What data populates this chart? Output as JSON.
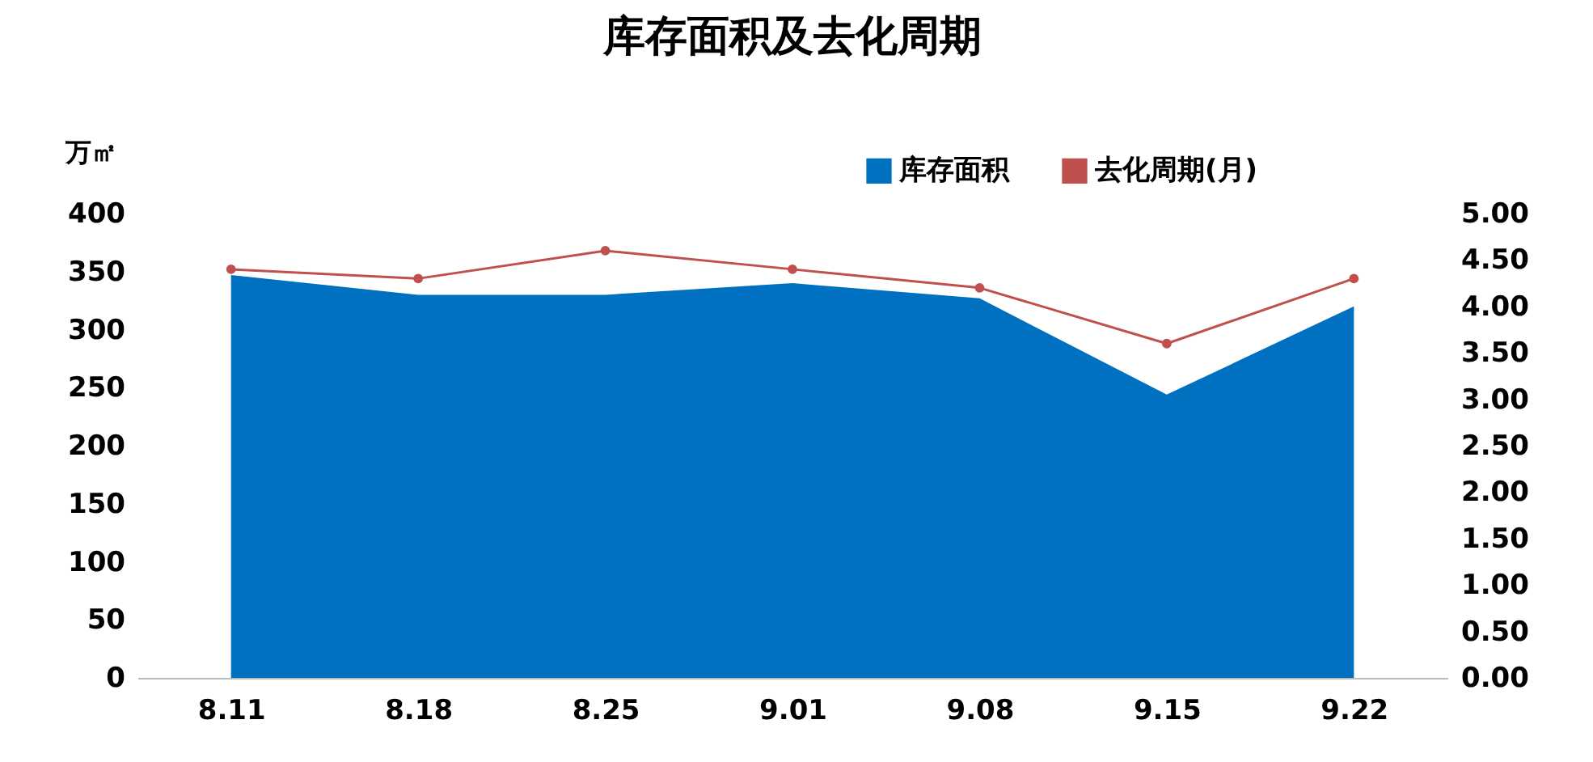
{
  "chart_data": {
    "type": "area",
    "title": "库存面积及去化周期",
    "ylabel": "万㎡",
    "categories": [
      "8.11",
      "8.18",
      "8.25",
      "9.01",
      "9.08",
      "9.15",
      "9.22"
    ],
    "series": [
      {
        "name": "库存面积",
        "color": "#0070c0",
        "values": [
          347,
          330,
          330,
          340,
          327,
          244,
          320
        ]
      },
      {
        "name": "去化周期(月)",
        "type": "line",
        "marker": "circle",
        "axis": "y2",
        "color": "#c0504d",
        "values": [
          4.4,
          4.3,
          4.6,
          4.4,
          4.2,
          3.6,
          4.3
        ]
      }
    ],
    "ylim": [
      0,
      400
    ],
    "yticks": [
      0,
      50,
      100,
      150,
      200,
      250,
      300,
      350,
      400
    ],
    "y2lim": [
      0,
      5
    ],
    "y2ticks": [
      {
        "value": 0,
        "label": "0.00"
      },
      {
        "value": 0.5,
        "label": "0.50"
      },
      {
        "value": 1,
        "label": "1.00"
      },
      {
        "value": 1.5,
        "label": "1.50"
      },
      {
        "value": 2,
        "label": "2.00"
      },
      {
        "value": 2.5,
        "label": "2.50"
      },
      {
        "value": 3,
        "label": "3.00"
      },
      {
        "value": 3.5,
        "label": "3.50"
      },
      {
        "value": 4,
        "label": "4.00"
      },
      {
        "value": 4.5,
        "label": "4.50"
      },
      {
        "value": 5,
        "label": "5.00"
      }
    ],
    "line_style": "solid",
    "legend": "top right",
    "grid": false
  }
}
